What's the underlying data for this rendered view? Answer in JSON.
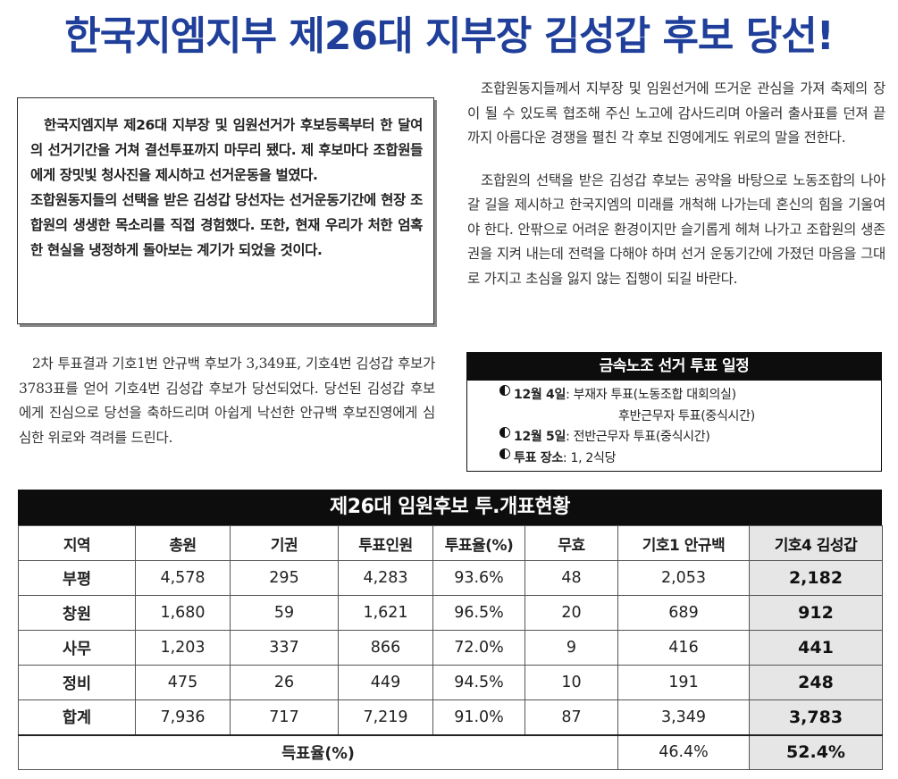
{
  "headline": "한국지엠지부 제26대 지부장 김성갑 후보 당선!",
  "summary": {
    "p1": "한국지엠지부 제26대 지부장 및 임원선거가 후보등록부터 한 달여의 선거기간을 거쳐 결선투표까지 마무리 됐다. 제 후보마다 조합원들에게 장밋빛 청사진을 제시하고 선거운동을 벌였다.",
    "p2": "조합원동지들의 선택을 받은 김성갑 당선자는 선거운동기간에 현장 조합원의 생생한 목소리를 직접 경험했다. 또한, 현재 우리가 처한 엄혹한 현실을 냉정하게 돌아보는 계기가 되었을 것이다."
  },
  "article_left": {
    "p1": "2차 투표결과 기호1번 안규백 후보가 3,349표, 기호4번 김성갑 후보가 3783표를 얻어 기호4번 김성갑 후보가 당선되었다. 당선된 김성갑 후보에게 진심으로 당선을 축하드리며 아쉽게 낙선한 안규백 후보진영에게 심심한 위로와 격려를 드린다."
  },
  "article_right": {
    "p1": "조합원동지들께서 지부장 및 임원선거에 뜨거운 관심을 가져 축제의 장이 될 수 있도록 협조해 주신 노고에 감사드리며 아울러 출사표를 던져 끝까지 아름다운 경쟁을 펼친 각 후보 진영에게도 위로의 말을 전한다.",
    "p2": "조합원의 선택을 받은 김성갑 후보는 공약을 바탕으로 노동조합의 나아갈 길을 제시하고 한국지엠의 미래를 개척해 나가는데 혼신의 힘을 기울여야 한다. 안팎으로 어려운 환경이지만 슬기롭게 헤쳐 나가고 조합원의 생존권을 지켜 내는데 전력을 다해야 하며 선거 운동기간에 가졌던 마음을 그대로 가지고 초심을 잃지 않는 집행이 되길 바란다."
  },
  "schedule": {
    "title": "금속노조 선거 투표 일정",
    "rows": [
      {
        "label": "12월 4일",
        "value": ": 부재자 투표(노동조합 대회의실)"
      },
      {
        "label": "",
        "value": "후반근무자 투표(중식시간)"
      },
      {
        "label": "12월 5일",
        "value": ": 전반근무자 투표(중식시간)"
      },
      {
        "label": "투표 장소",
        "value": ": 1, 2식당"
      }
    ]
  },
  "results_table": {
    "title": "제26대 임원후보 투.개표현황",
    "headers": [
      "지역",
      "총원",
      "기권",
      "투표인원",
      "투표율(%)",
      "무효",
      "기호1 안규백",
      "기호4 김성갑"
    ],
    "rows": [
      [
        "부평",
        "4,578",
        "295",
        "4,283",
        "93.6%",
        "48",
        "2,053",
        "2,182"
      ],
      [
        "창원",
        "1,680",
        "59",
        "1,621",
        "96.5%",
        "20",
        "689",
        "912"
      ],
      [
        "사무",
        "1,203",
        "337",
        "866",
        "72.0%",
        "9",
        "416",
        "441"
      ],
      [
        "정비",
        "475",
        "26",
        "449",
        "94.5%",
        "10",
        "191",
        "248"
      ],
      [
        "합계",
        "7,936",
        "717",
        "7,219",
        "91.0%",
        "87",
        "3,349",
        "3,783"
      ]
    ],
    "rate_label": "득표율(%)",
    "rate_candidate1": "46.4%",
    "rate_candidate4": "52.4%"
  }
}
